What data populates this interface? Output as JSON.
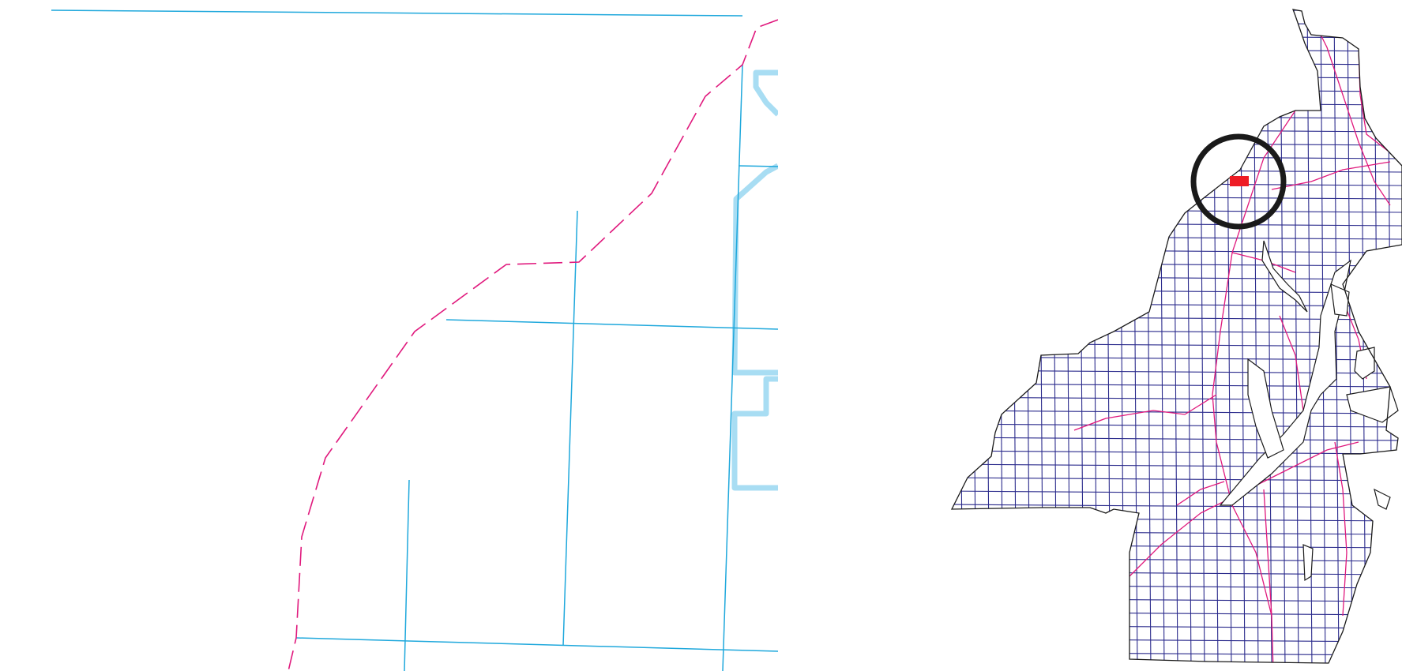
{
  "map": {
    "detail_view": {
      "colors": {
        "section_line": "#1fa8dc",
        "parcel_outline": "#a8ddf3",
        "shoreline_dashed": "#e0197d",
        "background": "#ffffff"
      }
    },
    "overview_view": {
      "colors": {
        "grid_line": "#2b2b8c",
        "road": "#e0197d",
        "coastline": "#1a1a1a",
        "location_marker": "#ee1c25",
        "focus_circle": "#1a1a1a"
      }
    }
  }
}
